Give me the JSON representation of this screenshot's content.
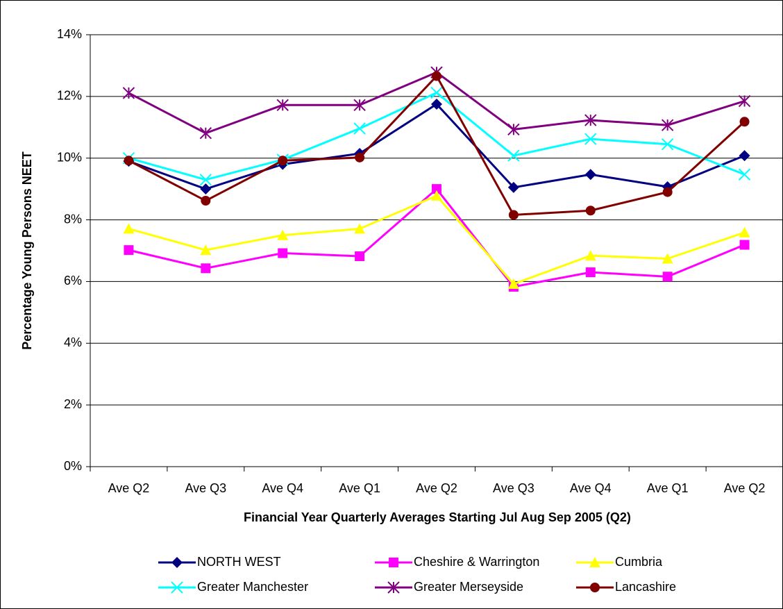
{
  "chart_data": {
    "type": "line",
    "y_label": "Percentage Young Persons NEET",
    "x_label": "Financial Year Quarterly Averages Starting Jul Aug Sep 2005 (Q2)",
    "categories": [
      "Ave Q2",
      "Ave Q3",
      "Ave Q4",
      "Ave Q1",
      "Ave Q2",
      "Ave Q3",
      "Ave Q4",
      "Ave Q1",
      "Ave Q2"
    ],
    "ylim": [
      0,
      14
    ],
    "yticks": [
      {
        "value": 0,
        "label": "0%"
      },
      {
        "value": 2,
        "label": "2%"
      },
      {
        "value": 4,
        "label": "4%"
      },
      {
        "value": 6,
        "label": "6%"
      },
      {
        "value": 8,
        "label": "8%"
      },
      {
        "value": 10,
        "label": "10%"
      },
      {
        "value": 12,
        "label": "12%"
      },
      {
        "value": 14,
        "label": "14%"
      }
    ],
    "grid": true,
    "series": [
      {
        "name": "NORTH WEST",
        "color": "#000080",
        "marker": "diamond",
        "values": [
          9.9,
          9.0,
          9.8,
          10.15,
          11.75,
          9.05,
          9.47,
          9.07,
          10.08
        ]
      },
      {
        "name": "Cheshire & Warrington",
        "color": "#ff00ff",
        "marker": "square",
        "values": [
          7.02,
          6.43,
          6.92,
          6.82,
          9.0,
          5.83,
          6.3,
          6.16,
          7.19
        ]
      },
      {
        "name": "Cumbria",
        "color": "#ffff00",
        "marker": "triangle",
        "values": [
          7.71,
          7.02,
          7.5,
          7.71,
          8.78,
          5.92,
          6.84,
          6.74,
          7.59
        ]
      },
      {
        "name": "Greater Manchester",
        "color": "#00ffff",
        "marker": "x",
        "values": [
          10.0,
          9.3,
          9.95,
          10.96,
          12.12,
          10.08,
          10.62,
          10.45,
          9.47
        ]
      },
      {
        "name": "Greater Merseyside",
        "color": "#800080",
        "marker": "asterisk",
        "values": [
          12.11,
          10.81,
          11.72,
          11.72,
          12.78,
          10.93,
          11.23,
          11.07,
          11.85
        ]
      },
      {
        "name": "Lancashire",
        "color": "#800000",
        "marker": "circle",
        "values": [
          9.92,
          8.62,
          9.92,
          10.02,
          12.66,
          8.16,
          8.3,
          8.9,
          11.18
        ]
      }
    ]
  }
}
